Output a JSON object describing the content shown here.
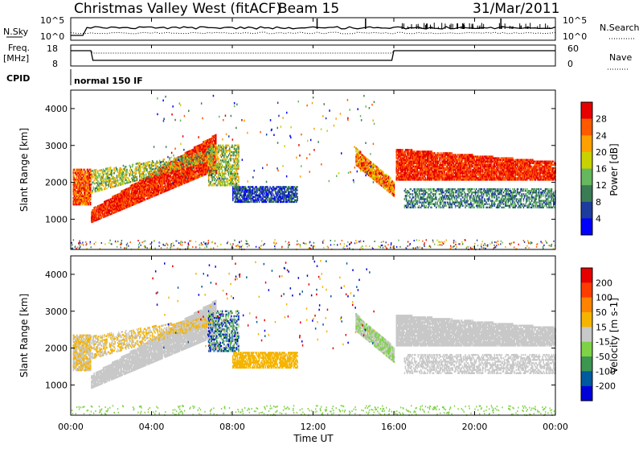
{
  "header": {
    "station": "Christmas Valley West (fitACF)",
    "beam": "Beam 15",
    "date": "31/Mar/2011"
  },
  "top_panels": {
    "nsky_label": "N.Sky",
    "nsky_scale_top": "10^5",
    "nsky_scale_bottom": "10^0",
    "nsearch_label": "N.Search",
    "nsearch_scale_top": "10^5",
    "nsearch_scale_bottom": "10^0",
    "freq_label_1": "Freq.",
    "freq_label_2": "[MHz]",
    "freq_ticks": [
      "18",
      "8"
    ],
    "nave_label": "Nave",
    "nave_ticks": [
      "60",
      "0"
    ],
    "cpid_label": "CPID",
    "cpid_value": "normal 150 IF"
  },
  "colors": {
    "power": [
      "#0000ff",
      "#1e3c9e",
      "#3a7c54",
      "#66b85e",
      "#c8d200",
      "#ffa000",
      "#ff5a00",
      "#e60000"
    ],
    "velocity": [
      "#0000d8",
      "#005a9e",
      "#3c9650",
      "#7ed246",
      "#c8c8c8",
      "#f5b400",
      "#ff8200",
      "#ff3c00",
      "#e60000"
    ],
    "ground": "#7ed246"
  },
  "chart_data": [
    {
      "type": "heatmap",
      "name": "power",
      "xlabel": "",
      "ylabel": "Slant Range [km]",
      "x_range_hours": [
        0,
        24
      ],
      "ylim": [
        180,
        4500
      ],
      "yticks": [
        "1000",
        "2000",
        "3000",
        "4000"
      ],
      "colorbar": {
        "label": "Power [dB]",
        "range": [
          0,
          32
        ],
        "ticks": [
          "4",
          "8",
          "12",
          "16",
          "20",
          "24",
          "28"
        ]
      }
    },
    {
      "type": "heatmap",
      "name": "velocity",
      "xlabel": "Time UT",
      "ylabel": "Slant Range [km]",
      "x_range_hours": [
        0,
        24
      ],
      "ylim": [
        180,
        4500
      ],
      "xticks": [
        "00:00",
        "04:00",
        "08:00",
        "12:00",
        "16:00",
        "20:00",
        "00:00"
      ],
      "yticks": [
        "1000",
        "2000",
        "3000",
        "4000"
      ],
      "colorbar": {
        "label": "Velocity [m s-1]",
        "ticks": [
          "200",
          "100",
          "50",
          "15",
          "-15",
          "-50",
          "-100",
          "-200"
        ]
      }
    }
  ]
}
